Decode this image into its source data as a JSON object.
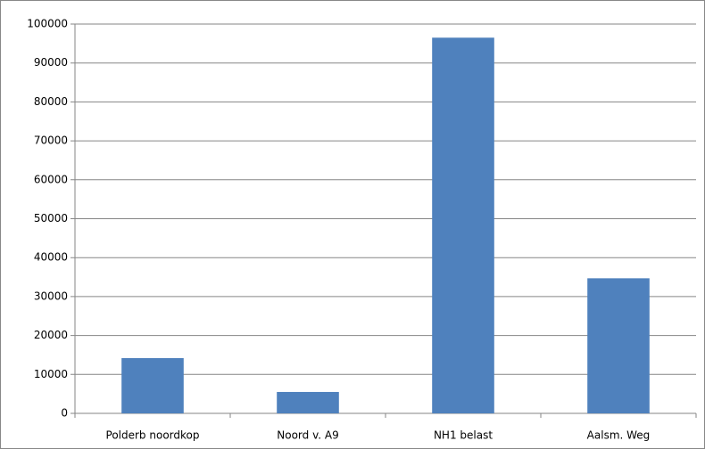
{
  "chart_data": {
    "type": "bar",
    "categories": [
      "Polderb noordkop",
      "Noord v. A9",
      "NH1 belast",
      "Aalsm. Weg"
    ],
    "values": [
      14200,
      5500,
      96500,
      34700
    ],
    "color": "#4f81bd",
    "ylim": [
      0,
      100000
    ],
    "yticks": [
      0,
      10000,
      20000,
      30000,
      40000,
      50000,
      60000,
      70000,
      80000,
      90000,
      100000
    ],
    "grid": true
  }
}
